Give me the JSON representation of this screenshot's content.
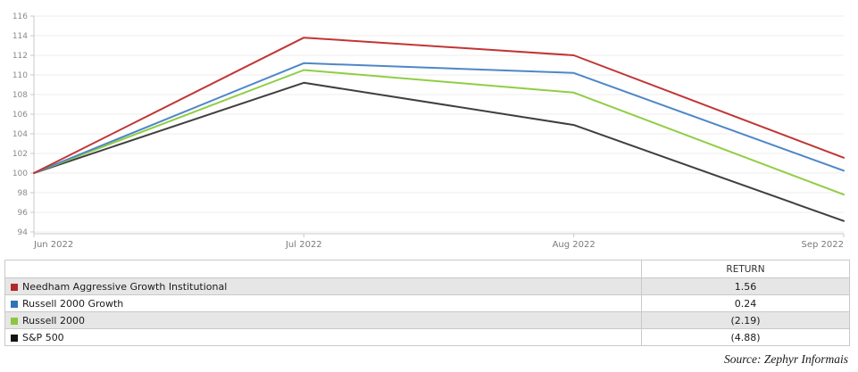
{
  "chart_data": {
    "type": "line",
    "x": [
      "Jun 2022",
      "Jul 2022",
      "Aug 2022",
      "Sep 2022"
    ],
    "ylim": [
      94,
      116
    ],
    "ytick_step": 2,
    "grid": "horizontal",
    "legend_position": "table-below",
    "title": "",
    "xlabel": "",
    "ylabel": "",
    "series": [
      {
        "name": "Needham Aggressive Growth Institutional",
        "color": "#c23535",
        "swatch_color": "#b02a2a",
        "values": [
          100,
          113.8,
          112.0,
          101.56
        ]
      },
      {
        "name": "Russell 2000 Growth",
        "color": "#4e87c7",
        "swatch_color": "#2f74b5",
        "values": [
          100,
          111.2,
          110.2,
          100.24
        ]
      },
      {
        "name": "Russell 2000",
        "color": "#8fce44",
        "swatch_color": "#8cc63e",
        "values": [
          100,
          110.5,
          108.2,
          97.81
        ]
      },
      {
        "name": "S&P 500",
        "color": "#3f3f3f",
        "swatch_color": "#141414",
        "values": [
          100,
          109.2,
          104.9,
          95.12
        ]
      }
    ]
  },
  "table": {
    "header": {
      "name": "",
      "return": "RETURN"
    },
    "rows": [
      {
        "label": "Needham Aggressive Growth Institutional",
        "return": "1.56"
      },
      {
        "label": "Russell 2000 Growth",
        "return": "0.24"
      },
      {
        "label": "Russell 2000",
        "return": "(2.19)"
      },
      {
        "label": "S&P 500",
        "return": "(4.88)"
      }
    ]
  },
  "source": "Source: Zephyr Informais",
  "colors": {
    "gridline": "#ededed",
    "axis": "#c8c8c8",
    "tick_label": "#8a8a8a",
    "x_label": "#7a7a7a",
    "row_alt_bg": "#e6e6e6",
    "table_border": "#c9c9c9"
  }
}
